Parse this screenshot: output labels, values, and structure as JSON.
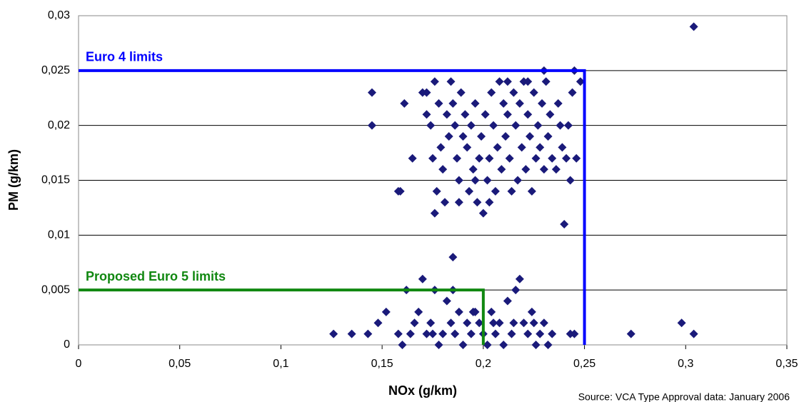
{
  "chart_data": {
    "type": "scatter",
    "x_label": "NOx (g/km)",
    "y_label": "PM (g/km)",
    "source": "Source: VCA Type Approval data: January 2006",
    "xlim": [
      0,
      0.35
    ],
    "ylim": [
      0,
      0.03
    ],
    "xticks": [
      0,
      {
        "value": 0.05,
        "label": "0,05"
      },
      {
        "value": 0.1,
        "label": "0,1"
      },
      {
        "value": 0.15,
        "label": "0,15"
      },
      {
        "value": 0.2,
        "label": "0,2"
      },
      {
        "value": 0.25,
        "label": "0,25"
      },
      {
        "value": 0.3,
        "label": "0,3"
      },
      {
        "value": 0.35,
        "label": "0,35"
      }
    ],
    "yticks": [
      0,
      {
        "value": 0.005,
        "label": "0,005"
      },
      {
        "value": 0.01,
        "label": "0,01"
      },
      {
        "value": 0.015,
        "label": "0,015"
      },
      {
        "value": 0.02,
        "label": "0,02"
      },
      {
        "value": 0.025,
        "label": "0,025"
      },
      {
        "value": 0.03,
        "label": "0,03"
      }
    ],
    "grid": true,
    "limits": [
      {
        "name": "Euro 4 limits",
        "color": "#0000ff",
        "x": 0.25,
        "y": 0.025
      },
      {
        "name": "Proposed Euro 5 limits",
        "color": "#118811",
        "x": 0.2,
        "y": 0.005
      }
    ],
    "series": [
      {
        "color": "#1a1a7a",
        "x": [
          0.304,
          0.126,
          0.135,
          0.143,
          0.273,
          0.298,
          0.304,
          0.145,
          0.145,
          0.158,
          0.159,
          0.161,
          0.185,
          0.24,
          0.23,
          0.245,
          0.248,
          0.165,
          0.17,
          0.172,
          0.174,
          0.176,
          0.175,
          0.176,
          0.177,
          0.178,
          0.179,
          0.18,
          0.181,
          0.182,
          0.183,
          0.184,
          0.185,
          0.186,
          0.187,
          0.188,
          0.189,
          0.19,
          0.191,
          0.192,
          0.193,
          0.194,
          0.195,
          0.196,
          0.197,
          0.198,
          0.199,
          0.2,
          0.201,
          0.202,
          0.203,
          0.204,
          0.205,
          0.206,
          0.207,
          0.208,
          0.209,
          0.21,
          0.211,
          0.212,
          0.213,
          0.214,
          0.215,
          0.216,
          0.217,
          0.218,
          0.219,
          0.22,
          0.221,
          0.222,
          0.223,
          0.224,
          0.225,
          0.226,
          0.227,
          0.228,
          0.229,
          0.23,
          0.231,
          0.232,
          0.233,
          0.234,
          0.236,
          0.237,
          0.238,
          0.239,
          0.241,
          0.242,
          0.243,
          0.244,
          0.246,
          0.172,
          0.196,
          0.188,
          0.203,
          0.212,
          0.222,
          0.16,
          0.162,
          0.164,
          0.166,
          0.168,
          0.17,
          0.172,
          0.174,
          0.176,
          0.178,
          0.18,
          0.182,
          0.184,
          0.186,
          0.188,
          0.19,
          0.192,
          0.194,
          0.196,
          0.198,
          0.2,
          0.202,
          0.204,
          0.206,
          0.208,
          0.21,
          0.212,
          0.214,
          0.216,
          0.218,
          0.22,
          0.222,
          0.224,
          0.226,
          0.228,
          0.23,
          0.232,
          0.234,
          0.152,
          0.148,
          0.158,
          0.175,
          0.185,
          0.195,
          0.205,
          0.215,
          0.225,
          0.243,
          0.245
        ],
        "values": [
          0.029,
          0.001,
          0.001,
          0.001,
          0.001,
          0.002,
          0.001,
          0.023,
          0.02,
          0.014,
          0.014,
          0.022,
          0.008,
          0.011,
          0.025,
          0.025,
          0.024,
          0.017,
          0.023,
          0.021,
          0.02,
          0.024,
          0.017,
          0.012,
          0.014,
          0.022,
          0.018,
          0.016,
          0.013,
          0.021,
          0.019,
          0.024,
          0.022,
          0.02,
          0.017,
          0.015,
          0.023,
          0.019,
          0.021,
          0.018,
          0.014,
          0.02,
          0.016,
          0.022,
          0.013,
          0.017,
          0.019,
          0.012,
          0.021,
          0.015,
          0.017,
          0.023,
          0.02,
          0.014,
          0.018,
          0.024,
          0.016,
          0.022,
          0.019,
          0.021,
          0.017,
          0.014,
          0.023,
          0.02,
          0.015,
          0.022,
          0.018,
          0.024,
          0.016,
          0.021,
          0.019,
          0.014,
          0.023,
          0.017,
          0.02,
          0.018,
          0.022,
          0.016,
          0.024,
          0.019,
          0.021,
          0.017,
          0.016,
          0.022,
          0.02,
          0.018,
          0.017,
          0.02,
          0.015,
          0.023,
          0.017,
          0.023,
          0.015,
          0.013,
          0.013,
          0.024,
          0.024,
          0.0,
          0.005,
          0.001,
          0.002,
          0.003,
          0.006,
          0.001,
          0.002,
          0.005,
          0.0,
          0.001,
          0.004,
          0.002,
          0.001,
          0.003,
          0.0,
          0.002,
          0.001,
          0.003,
          0.002,
          0.001,
          0.0,
          0.003,
          0.001,
          0.002,
          0.0,
          0.004,
          0.001,
          0.005,
          0.006,
          0.002,
          0.001,
          0.003,
          0.0,
          0.001,
          0.002,
          0.0,
          0.001,
          0.003,
          0.002,
          0.001,
          0.001,
          0.005,
          0.003,
          0.002,
          0.002,
          0.002,
          0.001,
          0.001
        ]
      }
    ]
  }
}
